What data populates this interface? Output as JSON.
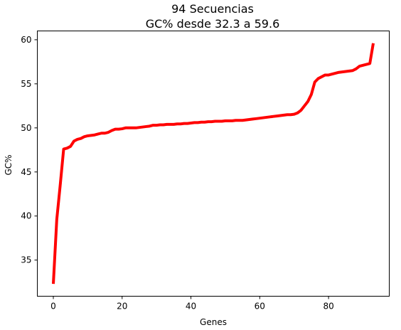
{
  "chart_data": {
    "type": "line",
    "title": "94 Secuencias",
    "subtitle": "GC% desde 32.3 a 59.6",
    "xlabel": "Genes",
    "ylabel": "GC%",
    "xlim": [
      -4.65,
      97.65
    ],
    "ylim": [
      30.9,
      61.0
    ],
    "xticks": [
      0,
      20,
      40,
      60,
      80
    ],
    "yticks": [
      35,
      40,
      45,
      50,
      55,
      60
    ],
    "xtick_labels": [
      "0",
      "20",
      "40",
      "60",
      "80"
    ],
    "ytick_labels": [
      "35",
      "40",
      "45",
      "50",
      "55",
      "60"
    ],
    "grid": false,
    "series": [
      {
        "color": "#ff0000",
        "x": [
          0,
          1,
          2,
          3,
          4,
          5,
          6,
          7,
          8,
          9,
          10,
          11,
          12,
          13,
          14,
          15,
          16,
          17,
          18,
          19,
          20,
          21,
          22,
          23,
          24,
          25,
          26,
          27,
          28,
          29,
          30,
          31,
          32,
          33,
          34,
          35,
          36,
          37,
          38,
          39,
          40,
          41,
          42,
          43,
          44,
          45,
          46,
          47,
          48,
          49,
          50,
          51,
          52,
          53,
          54,
          55,
          56,
          57,
          58,
          59,
          60,
          61,
          62,
          63,
          64,
          65,
          66,
          67,
          68,
          69,
          70,
          71,
          72,
          73,
          74,
          75,
          76,
          77,
          78,
          79,
          80,
          81,
          82,
          83,
          84,
          85,
          86,
          87,
          88,
          89,
          90,
          91,
          92,
          93
        ],
        "values": [
          32.3,
          39.6,
          43.5,
          47.6,
          47.7,
          47.9,
          48.5,
          48.7,
          48.8,
          49.0,
          49.1,
          49.15,
          49.2,
          49.3,
          49.4,
          49.4,
          49.5,
          49.7,
          49.85,
          49.85,
          49.9,
          50.0,
          50.0,
          50.0,
          50.0,
          50.05,
          50.1,
          50.15,
          50.2,
          50.3,
          50.3,
          50.35,
          50.35,
          50.4,
          50.4,
          50.4,
          50.45,
          50.45,
          50.5,
          50.5,
          50.55,
          50.6,
          50.6,
          50.65,
          50.65,
          50.7,
          50.7,
          50.75,
          50.75,
          50.75,
          50.8,
          50.8,
          50.8,
          50.85,
          50.85,
          50.85,
          50.9,
          50.95,
          51.0,
          51.05,
          51.1,
          51.15,
          51.2,
          51.25,
          51.3,
          51.35,
          51.4,
          51.45,
          51.5,
          51.5,
          51.55,
          51.7,
          52.0,
          52.5,
          53.0,
          53.8,
          55.2,
          55.6,
          55.8,
          56.0,
          56.0,
          56.1,
          56.2,
          56.3,
          56.35,
          56.4,
          56.45,
          56.5,
          56.7,
          57.0,
          57.1,
          57.2,
          57.3,
          59.6
        ]
      }
    ]
  }
}
